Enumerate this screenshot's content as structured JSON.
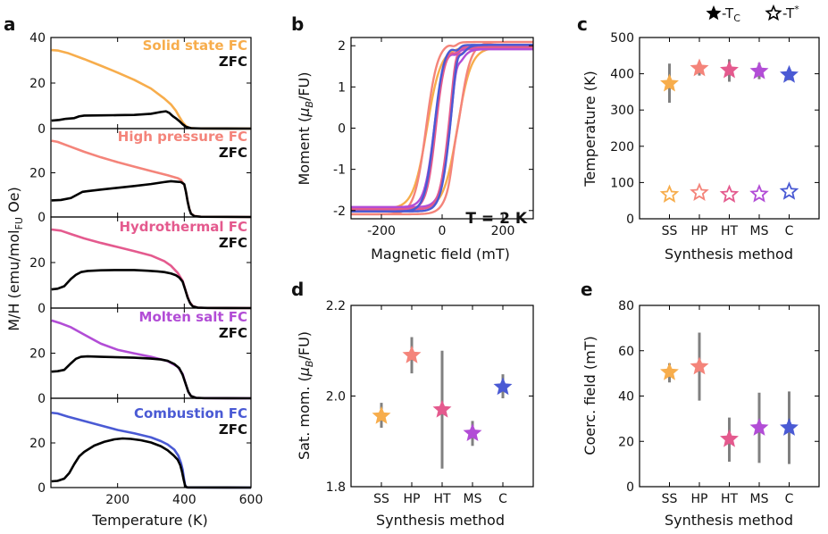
{
  "figure": {
    "panel_letters": [
      "a",
      "b",
      "c",
      "d",
      "e"
    ],
    "legend": {
      "tc": "-T",
      "tc_sub": "C",
      "tstar": "-T",
      "tstar_sup": "*"
    }
  },
  "colors": {
    "SS": "#f7ad4c",
    "HP": "#f4847a",
    "HT": "#e45a8e",
    "MS": "#b24dd6",
    "C": "#4a5ad4",
    "ZFC": "#000000",
    "errorbar": "#808080"
  },
  "chart_data": [
    {
      "id": "a",
      "type": "line",
      "xlabel": "Temperature (K)",
      "ylabel": "M/H (emu/mol",
      "ylabel_sub": "FU",
      "ylabel_tail": " Oe)",
      "xlim": [
        0,
        600
      ],
      "xticks": [
        200,
        400,
        600
      ],
      "ylim": [
        0,
        40
      ],
      "yticks": [
        0,
        20,
        40
      ],
      "subpanels": [
        {
          "fc_label": "Solid state FC",
          "zfc_label": "ZFC",
          "color_key": "SS",
          "fc": [
            [
              2,
              34.5
            ],
            [
              20,
              34.3
            ],
            [
              50,
              33.2
            ],
            [
              100,
              30.5
            ],
            [
              150,
              27.6
            ],
            [
              200,
              24.6
            ],
            [
              250,
              21.4
            ],
            [
              300,
              17.6
            ],
            [
              340,
              13.2
            ],
            [
              360,
              10.6
            ],
            [
              375,
              7.8
            ],
            [
              385,
              5.2
            ],
            [
              395,
              2.8
            ],
            [
              405,
              1.1
            ],
            [
              415,
              0.35
            ],
            [
              430,
              0.1
            ],
            [
              460,
              0.03
            ],
            [
              600,
              0
            ]
          ],
          "zfc": [
            [
              2,
              3.5
            ],
            [
              25,
              3.8
            ],
            [
              45,
              4.3
            ],
            [
              70,
              4.6
            ],
            [
              85,
              5.4
            ],
            [
              100,
              5.7
            ],
            [
              150,
              5.8
            ],
            [
              200,
              5.9
            ],
            [
              250,
              6.0
            ],
            [
              300,
              6.5
            ],
            [
              330,
              7.3
            ],
            [
              345,
              7.6
            ],
            [
              355,
              6.9
            ],
            [
              365,
              5.5
            ],
            [
              375,
              4.5
            ],
            [
              385,
              3.3
            ],
            [
              395,
              1.9
            ],
            [
              405,
              0.8
            ],
            [
              420,
              0.2
            ],
            [
              450,
              0.05
            ],
            [
              600,
              0
            ]
          ]
        },
        {
          "fc_label": "High pressure FC",
          "zfc_label": "ZFC",
          "color_key": "HP",
          "fc": [
            [
              2,
              34.5
            ],
            [
              20,
              34.0
            ],
            [
              50,
              32.3
            ],
            [
              100,
              29.5
            ],
            [
              150,
              27.0
            ],
            [
              200,
              24.8
            ],
            [
              250,
              22.8
            ],
            [
              300,
              20.8
            ],
            [
              350,
              18.9
            ],
            [
              380,
              17.6
            ],
            [
              390,
              16.8
            ],
            [
              400,
              14.5
            ],
            [
              405,
              11.5
            ],
            [
              410,
              7.2
            ],
            [
              415,
              3.8
            ],
            [
              420,
              1.6
            ],
            [
              430,
              0.5
            ],
            [
              450,
              0.1
            ],
            [
              600,
              0
            ]
          ],
          "zfc": [
            [
              2,
              7.5
            ],
            [
              30,
              7.7
            ],
            [
              60,
              8.6
            ],
            [
              80,
              10.2
            ],
            [
              95,
              11.4
            ],
            [
              110,
              11.7
            ],
            [
              150,
              12.4
            ],
            [
              200,
              13.2
            ],
            [
              250,
              14.0
            ],
            [
              300,
              14.9
            ],
            [
              340,
              15.8
            ],
            [
              360,
              16.2
            ],
            [
              375,
              16.0
            ],
            [
              390,
              15.8
            ],
            [
              400,
              14.8
            ],
            [
              405,
              11.3
            ],
            [
              410,
              7.0
            ],
            [
              415,
              3.6
            ],
            [
              420,
              1.5
            ],
            [
              430,
              0.4
            ],
            [
              450,
              0.1
            ],
            [
              600,
              0
            ]
          ]
        },
        {
          "fc_label": "Hydrothermal FC",
          "zfc_label": "ZFC",
          "color_key": "HT",
          "fc": [
            [
              2,
              34.5
            ],
            [
              30,
              34.0
            ],
            [
              60,
              32.5
            ],
            [
              100,
              30.6
            ],
            [
              150,
              28.6
            ],
            [
              200,
              26.8
            ],
            [
              250,
              25.0
            ],
            [
              300,
              23.1
            ],
            [
              340,
              20.6
            ],
            [
              360,
              18.6
            ],
            [
              380,
              15.5
            ],
            [
              395,
              12.0
            ],
            [
              405,
              7.2
            ],
            [
              415,
              2.9
            ],
            [
              425,
              0.9
            ],
            [
              440,
              0.2
            ],
            [
              470,
              0.05
            ],
            [
              600,
              0
            ]
          ],
          "zfc": [
            [
              2,
              8.2
            ],
            [
              20,
              8.5
            ],
            [
              40,
              9.6
            ],
            [
              60,
              12.8
            ],
            [
              75,
              14.6
            ],
            [
              90,
              15.8
            ],
            [
              110,
              16.3
            ],
            [
              150,
              16.6
            ],
            [
              200,
              16.7
            ],
            [
              250,
              16.7
            ],
            [
              290,
              16.4
            ],
            [
              320,
              16.1
            ],
            [
              340,
              15.8
            ],
            [
              360,
              15.2
            ],
            [
              375,
              14.4
            ],
            [
              385,
              13.4
            ],
            [
              395,
              11.6
            ],
            [
              403,
              8.0
            ],
            [
              410,
              4.6
            ],
            [
              418,
              2.0
            ],
            [
              425,
              0.8
            ],
            [
              440,
              0.2
            ],
            [
              470,
              0.05
            ],
            [
              600,
              0
            ]
          ]
        },
        {
          "fc_label": "Molten salt FC",
          "zfc_label": "ZFC",
          "color_key": "MS",
          "fc": [
            [
              2,
              34.5
            ],
            [
              30,
              33.2
            ],
            [
              60,
              31.5
            ],
            [
              100,
              28.2
            ],
            [
              150,
              24.2
            ],
            [
              200,
              21.5
            ],
            [
              250,
              19.9
            ],
            [
              300,
              18.4
            ],
            [
              350,
              16.5
            ],
            [
              380,
              14.0
            ],
            [
              395,
              10.8
            ],
            [
              405,
              6.0
            ],
            [
              412,
              2.9
            ],
            [
              420,
              1.0
            ],
            [
              435,
              0.2
            ],
            [
              460,
              0.05
            ],
            [
              600,
              0
            ]
          ],
          "zfc": [
            [
              2,
              11.8
            ],
            [
              20,
              12.0
            ],
            [
              40,
              12.6
            ],
            [
              60,
              15.5
            ],
            [
              75,
              17.5
            ],
            [
              90,
              18.4
            ],
            [
              110,
              18.6
            ],
            [
              150,
              18.4
            ],
            [
              200,
              18.2
            ],
            [
              250,
              18.0
            ],
            [
              300,
              17.6
            ],
            [
              330,
              17.2
            ],
            [
              350,
              16.6
            ],
            [
              370,
              15.2
            ],
            [
              385,
              13.3
            ],
            [
              395,
              10.4
            ],
            [
              405,
              6.0
            ],
            [
              412,
              2.9
            ],
            [
              420,
              1.0
            ],
            [
              435,
              0.2
            ],
            [
              460,
              0.05
            ],
            [
              600,
              0
            ]
          ]
        },
        {
          "fc_label": "Combustion FC",
          "zfc_label": "ZFC",
          "color_key": "C",
          "fc": [
            [
              2,
              33.5
            ],
            [
              20,
              33.2
            ],
            [
              50,
              31.8
            ],
            [
              100,
              29.8
            ],
            [
              150,
              27.8
            ],
            [
              200,
              25.8
            ],
            [
              250,
              24.3
            ],
            [
              300,
              22.5
            ],
            [
              330,
              20.8
            ],
            [
              350,
              19.3
            ],
            [
              370,
              17.0
            ],
            [
              382,
              14.3
            ],
            [
              390,
              11.0
            ],
            [
              395,
              8.0
            ],
            [
              399,
              4.0
            ],
            [
              402,
              1.3
            ],
            [
              405,
              0.3
            ],
            [
              410,
              0.05
            ],
            [
              600,
              0
            ]
          ],
          "zfc": [
            [
              2,
              2.8
            ],
            [
              20,
              3.0
            ],
            [
              40,
              4.0
            ],
            [
              55,
              6.5
            ],
            [
              70,
              10.5
            ],
            [
              85,
              14.0
            ],
            [
              100,
              16.0
            ],
            [
              130,
              18.8
            ],
            [
              160,
              20.5
            ],
            [
              190,
              21.6
            ],
            [
              215,
              22.0
            ],
            [
              240,
              21.8
            ],
            [
              270,
              21.2
            ],
            [
              300,
              20.2
            ],
            [
              330,
              18.5
            ],
            [
              350,
              16.7
            ],
            [
              368,
              14.4
            ],
            [
              380,
              12.5
            ],
            [
              388,
              10.0
            ],
            [
              393,
              7.2
            ],
            [
              398,
              3.6
            ],
            [
              402,
              1.1
            ],
            [
              405,
              0.3
            ],
            [
              410,
              0.05
            ],
            [
              600,
              0
            ]
          ]
        }
      ]
    },
    {
      "id": "b",
      "type": "line",
      "xlabel": "Magnetic field (mT)",
      "ylabel": "Moment (",
      "ylabel_mu": "μ",
      "ylabel_sub": "B",
      "ylabel_tail": "/FU)",
      "annotation": "T = 2 K",
      "xlim": [
        -300,
        300
      ],
      "xticks": [
        -200,
        0,
        200
      ],
      "ylim": [
        -2.2,
        2.2
      ],
      "yticks": [
        -2,
        -1,
        0,
        1,
        2
      ],
      "series": [
        {
          "name": "SS",
          "color_key": "SS",
          "hc": 50,
          "ms": 1.956,
          "w": 45,
          "kinkH": 0,
          "kinkA": 0
        },
        {
          "name": "HP",
          "color_key": "HP",
          "hc": 53,
          "ms": 2.09,
          "w": 38,
          "kinkH": 40,
          "kinkA": 0.22
        },
        {
          "name": "MS",
          "color_key": "MS",
          "hc": 26,
          "ms": 1.918,
          "w": 32,
          "kinkH": 45,
          "kinkA": 0.3
        },
        {
          "name": "HT",
          "color_key": "HT",
          "hc": 21,
          "ms": 1.97,
          "w": 30,
          "kinkH": 45,
          "kinkA": 0.32
        },
        {
          "name": "C",
          "color_key": "C",
          "hc": 26,
          "ms": 2.02,
          "w": 31,
          "kinkH": 48,
          "kinkA": 0.33
        }
      ]
    },
    {
      "id": "c",
      "type": "scatter",
      "xlabel": "Synthesis method",
      "ylabel": "Temperature (K)",
      "categories": [
        "SS",
        "HP",
        "HT",
        "MS",
        "C"
      ],
      "ylim": [
        0,
        500
      ],
      "yticks": [
        0,
        100,
        200,
        300,
        400,
        500
      ],
      "series": [
        {
          "name": "T_C",
          "marker": "filled-star",
          "values": [
            373,
            415,
            410,
            407,
            397
          ],
          "err_low": [
            320,
            395,
            378,
            385,
            382
          ],
          "err_high": [
            428,
            428,
            440,
            430,
            410
          ]
        },
        {
          "name": "T*",
          "marker": "open-star",
          "values": [
            67,
            72,
            67,
            68,
            75
          ],
          "err_low": [
            62,
            68,
            63,
            64,
            70
          ],
          "err_high": [
            72,
            76,
            71,
            72,
            80
          ]
        }
      ]
    },
    {
      "id": "d",
      "type": "scatter",
      "xlabel": "Synthesis method",
      "ylabel": "Sat. mom. (",
      "ylabel_mu": "μ",
      "ylabel_sub": "B",
      "ylabel_tail": "/FU)",
      "categories": [
        "SS",
        "HP",
        "HT",
        "MS",
        "C"
      ],
      "ylim": [
        1.8,
        2.2
      ],
      "yticks": [
        1.8,
        2.0,
        2.2
      ],
      "ytick_labels": [
        "1.8",
        "2.0",
        "2.2"
      ],
      "values": [
        1.956,
        2.09,
        1.97,
        1.918,
        2.02
      ],
      "err_low": [
        1.93,
        2.05,
        1.84,
        1.89,
        1.995
      ],
      "err_high": [
        1.985,
        2.13,
        2.1,
        1.945,
        2.048
      ]
    },
    {
      "id": "e",
      "type": "scatter",
      "xlabel": "Synthesis method",
      "ylabel": "Coerc. field (mT)",
      "categories": [
        "SS",
        "HP",
        "HT",
        "MS",
        "C"
      ],
      "ylim": [
        0,
        80
      ],
      "yticks": [
        0,
        20,
        40,
        60,
        80
      ],
      "values": [
        50.5,
        53,
        21,
        26,
        26
      ],
      "err_low": [
        46,
        38,
        11,
        10.5,
        10
      ],
      "err_high": [
        54.5,
        68,
        30.5,
        41.5,
        42
      ]
    }
  ]
}
